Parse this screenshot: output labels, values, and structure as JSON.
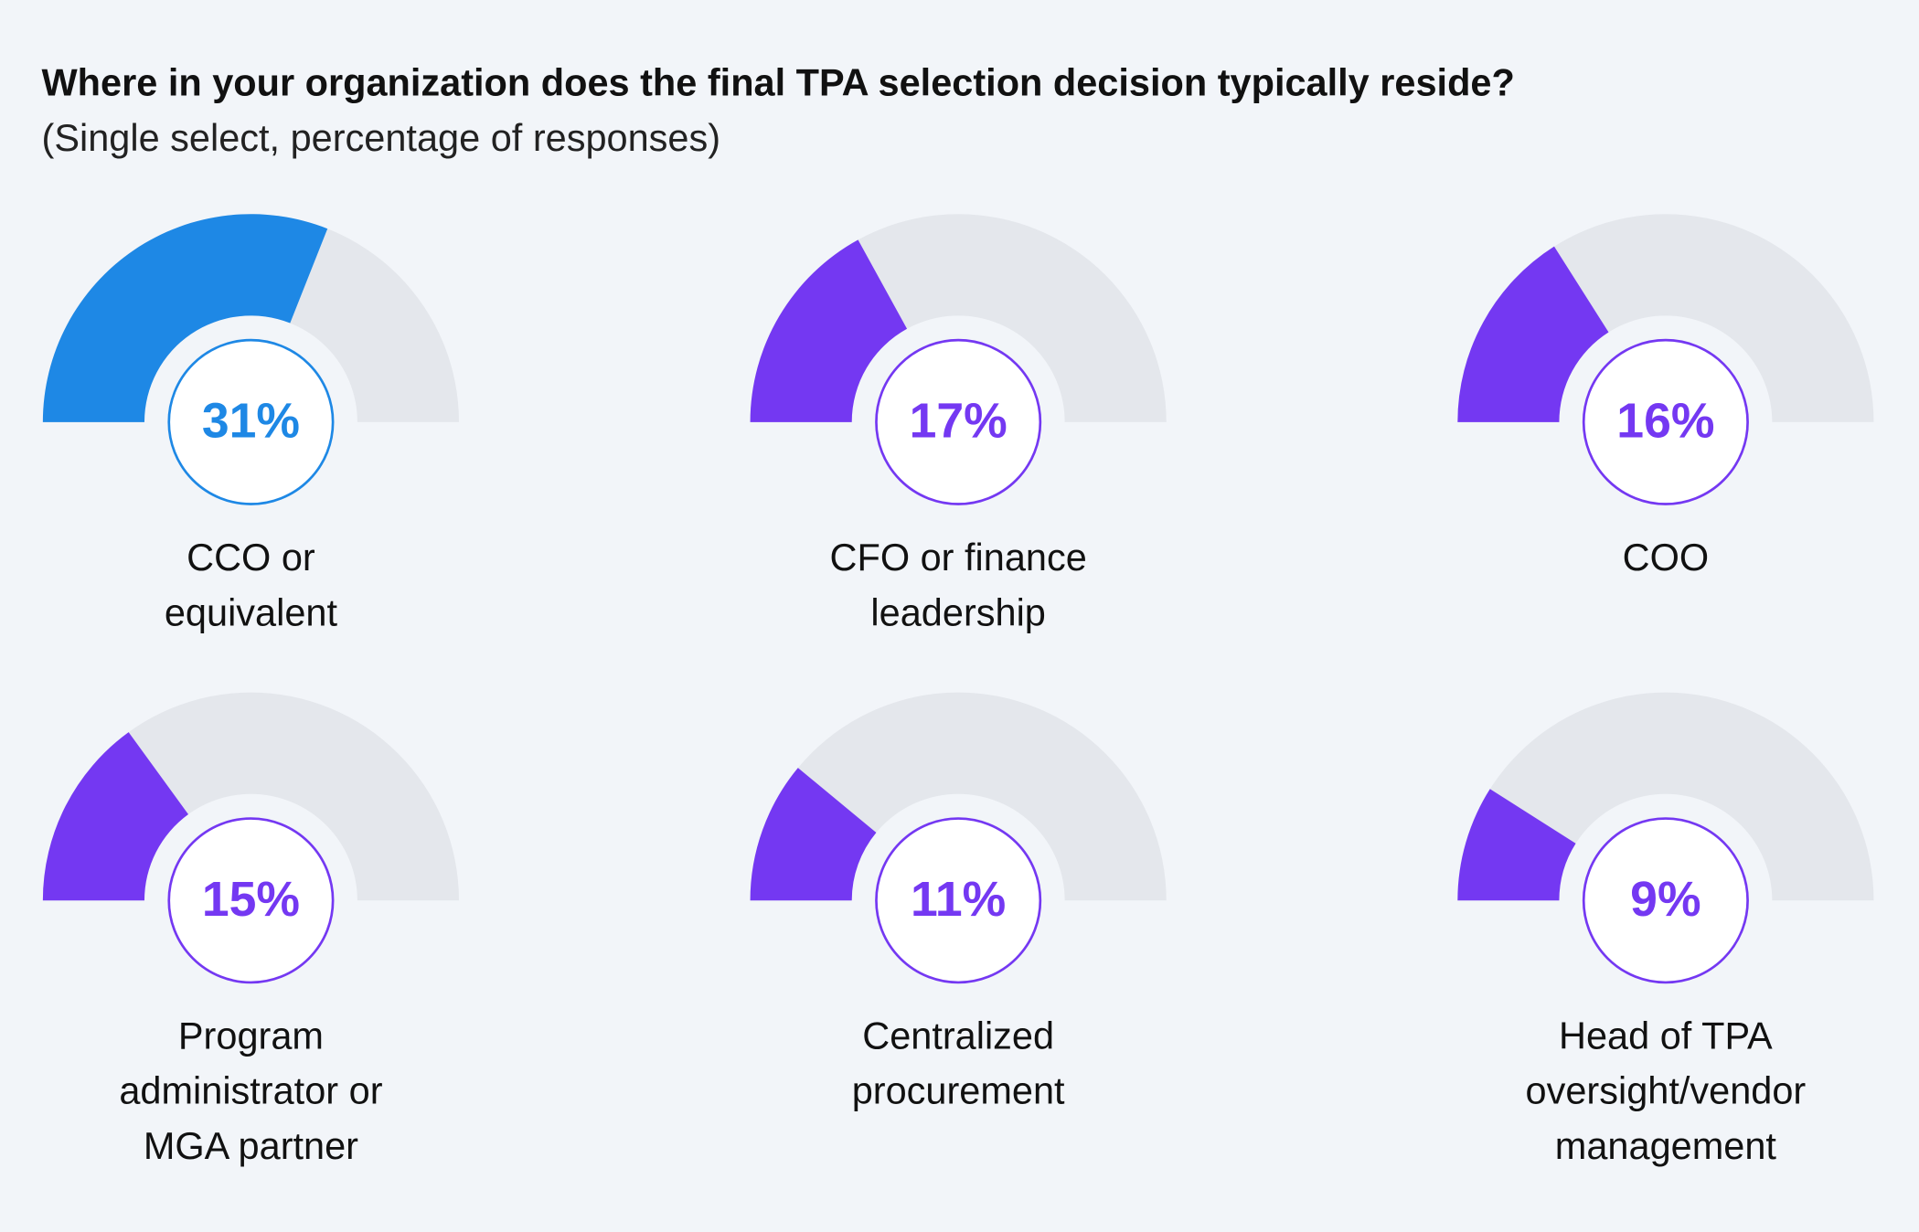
{
  "chart_data": {
    "type": "gauge",
    "title": "Where in your organization does the final TPA selection decision typically reside?",
    "subtitle": "(Single select, percentage of responses)",
    "categories": [
      [
        "CCO or",
        "equivalent"
      ],
      [
        "CFO or finance",
        "leadership"
      ],
      [
        "COO"
      ],
      [
        "Program",
        "administrator or",
        "MGA partner"
      ],
      [
        "Centralized",
        "procurement"
      ],
      [
        "Head of TPA",
        "oversight/vendor",
        "management"
      ]
    ],
    "values": [
      31,
      17,
      16,
      15,
      11,
      9
    ],
    "value_labels": [
      "31%",
      "17%",
      "16%",
      "15%",
      "11%",
      "9%"
    ],
    "colors": [
      "#1e88e5",
      "#7438f2",
      "#7438f2",
      "#7438f2",
      "#7438f2",
      "#7438f2"
    ],
    "ylim": [
      0,
      50
    ]
  }
}
